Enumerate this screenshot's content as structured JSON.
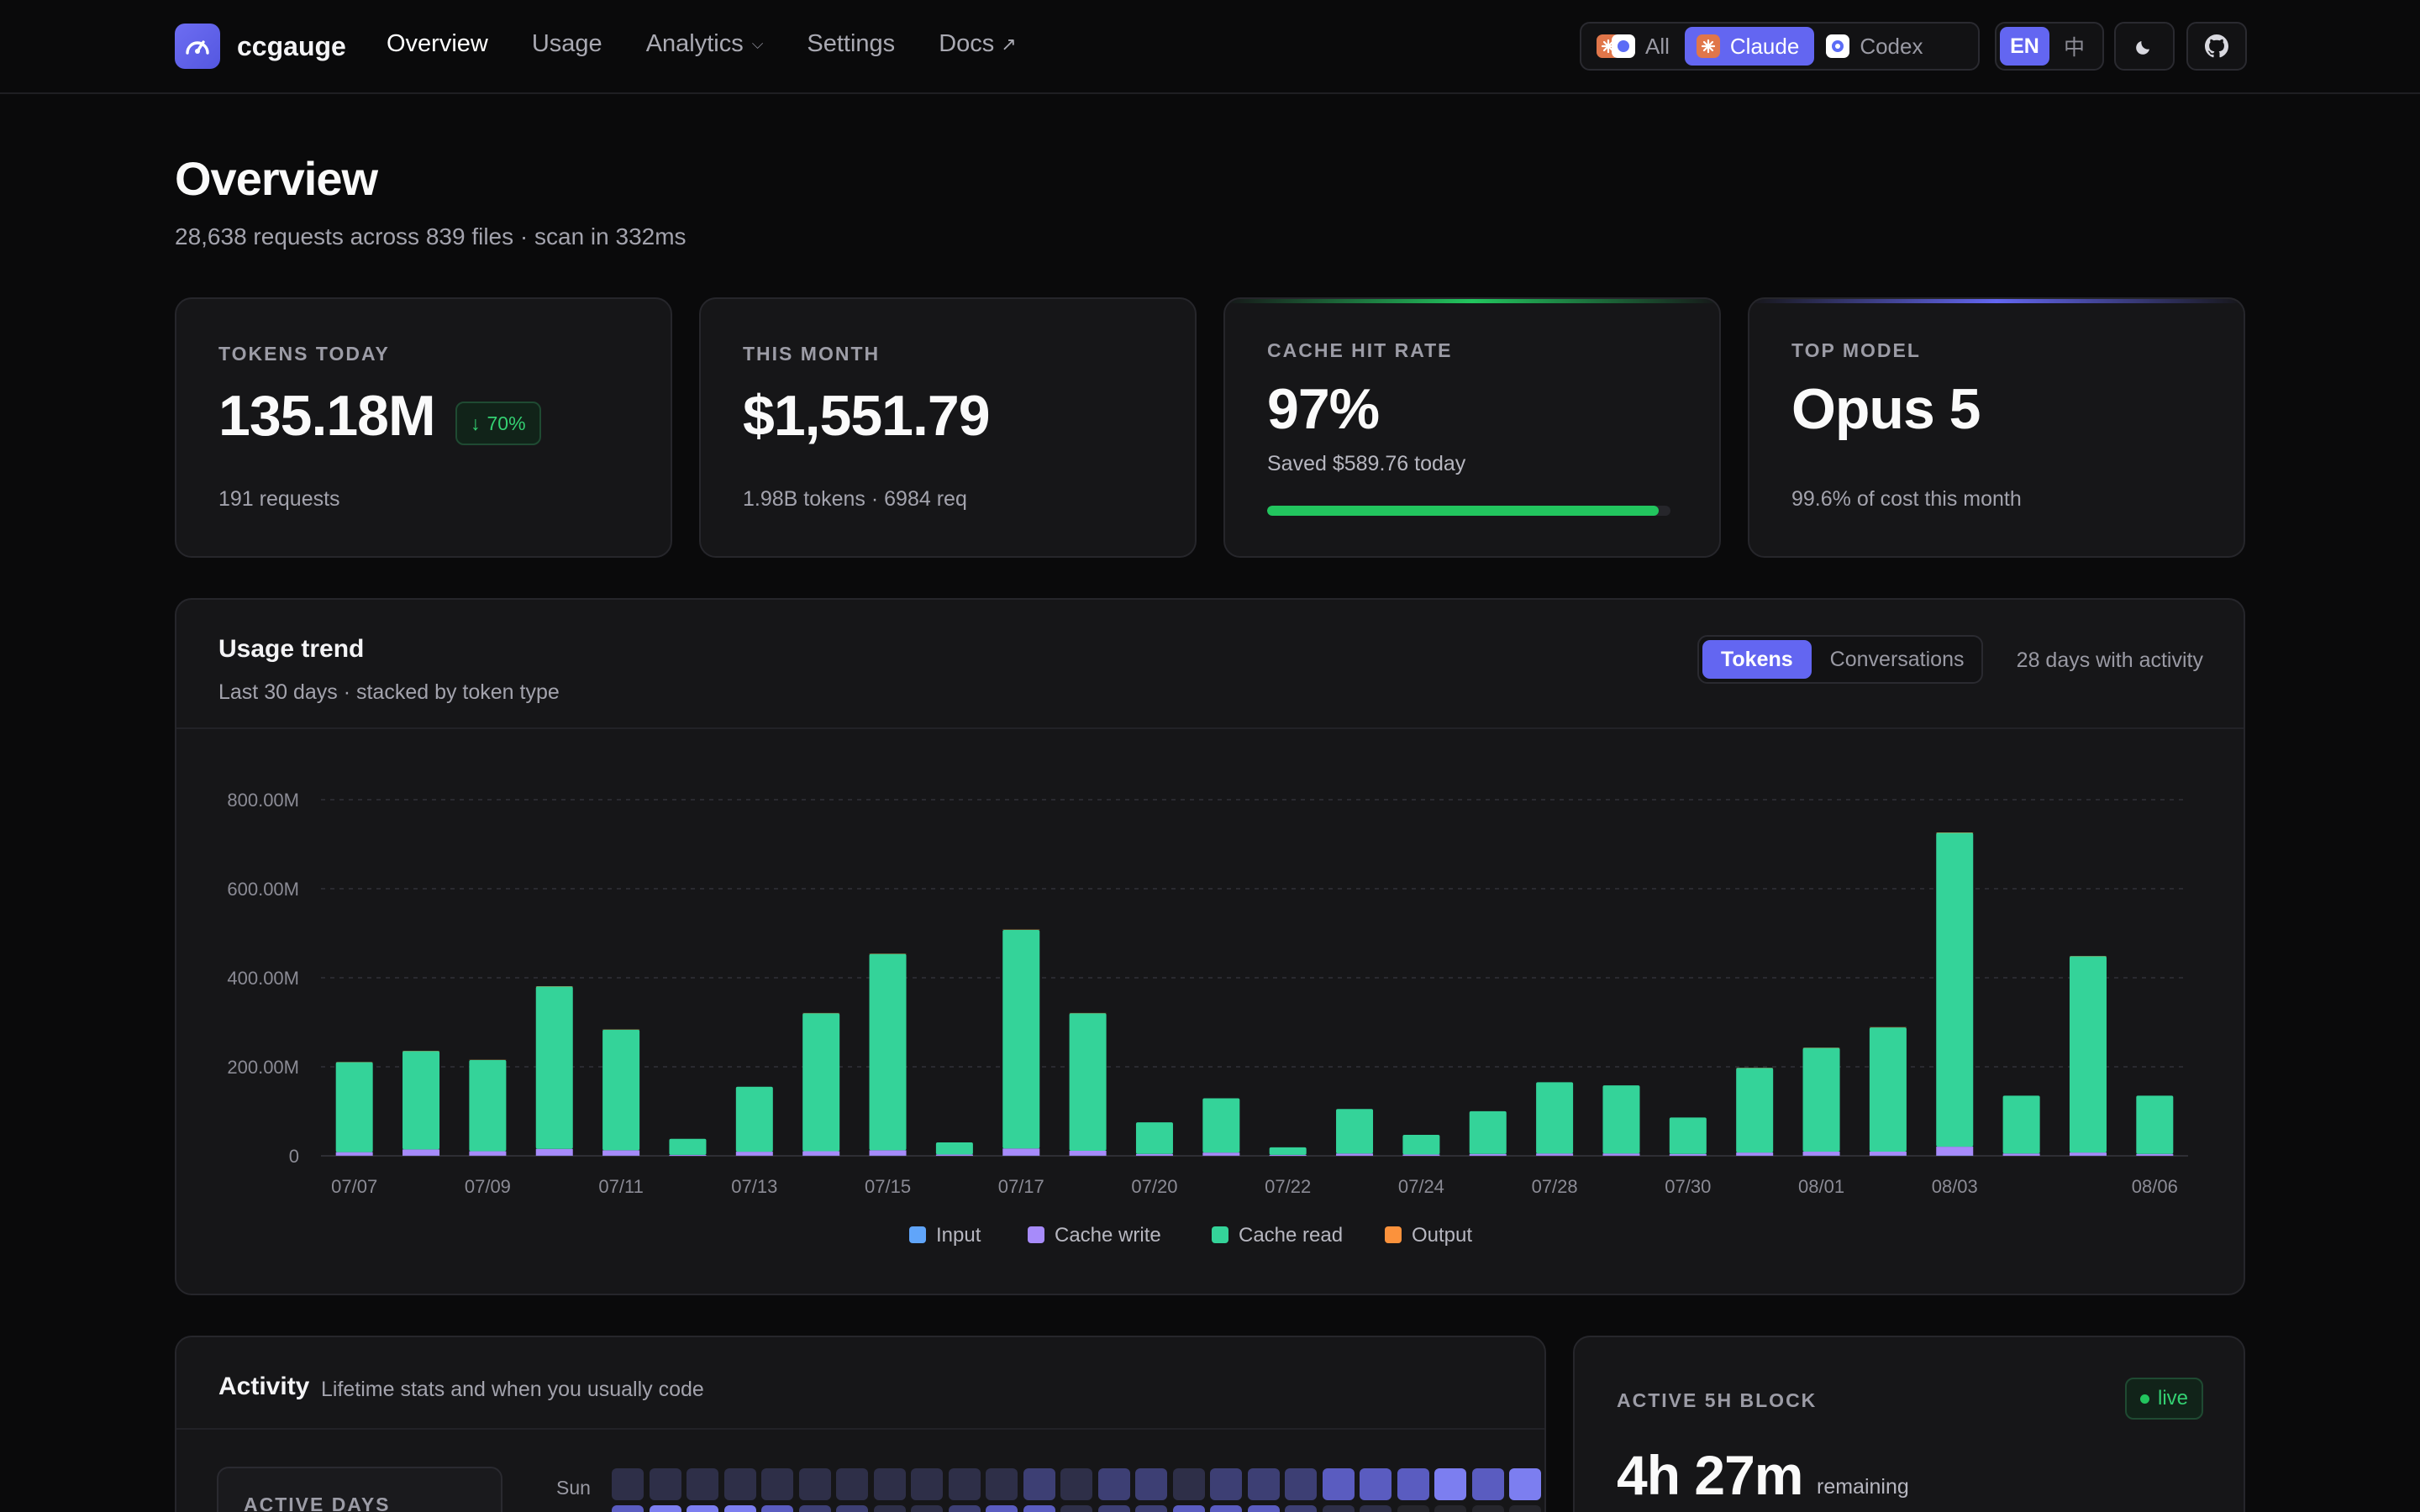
{
  "app": {
    "name": "ccgauge"
  },
  "nav": {
    "links": [
      {
        "label": "Overview"
      },
      {
        "label": "Usage"
      },
      {
        "label": "Analytics"
      },
      {
        "label": "Settings"
      },
      {
        "label": "Docs"
      }
    ],
    "active": "Overview",
    "tool_filter": [
      {
        "label": "All"
      },
      {
        "label": "Claude"
      },
      {
        "label": "Codex"
      }
    ],
    "tool_filter_selected": "Claude",
    "language": [
      {
        "label": "EN"
      },
      {
        "label": "中"
      }
    ],
    "language_selected": "EN",
    "theme_icon": "moon-icon",
    "repo_icon": "github-icon"
  },
  "header": {
    "title": "Overview",
    "subtitle": "28,638 requests across 839 files · scan in 332ms"
  },
  "stats": {
    "tokens_today": {
      "label": "TOKENS TODAY",
      "value": "135.18M",
      "change": "70%",
      "change_direction": "down",
      "foot": "191 requests"
    },
    "this_month": {
      "label": "THIS MONTH",
      "value": "$1,551.79",
      "foot": "1.98B tokens · 6984 req"
    },
    "cache_hit": {
      "label": "CACHE HIT RATE",
      "value": "97%",
      "sub": "Saved $589.76 today",
      "progress": 0.97,
      "accent": "#22c55e"
    },
    "top_model": {
      "label": "TOP MODEL",
      "value": "Opus 5",
      "foot": "99.6% of cost this month",
      "accent": "#6366f1"
    }
  },
  "usage_trend": {
    "title": "Usage trend",
    "subtitle": "Last 30 days · stacked by token type",
    "toggle": [
      {
        "label": "Tokens"
      },
      {
        "label": "Conversations"
      }
    ],
    "toggle_selected": "Tokens",
    "activity_note": "28 days with activity"
  },
  "chart_data": {
    "type": "bar",
    "stacked": true,
    "categories": [
      "07/07",
      "07/08",
      "07/09",
      "07/10",
      "07/11",
      "07/12",
      "07/13",
      "07/14",
      "07/15",
      "07/16",
      "07/17",
      "07/18",
      "07/20",
      "07/21",
      "07/22",
      "07/23",
      "07/24",
      "07/27",
      "07/28",
      "07/29",
      "07/30",
      "07/31",
      "08/01",
      "08/02",
      "08/03",
      "08/04",
      "08/05",
      "08/06"
    ],
    "tick_labels": [
      "07/07",
      "07/09",
      "07/11",
      "07/13",
      "07/15",
      "07/17",
      "07/20",
      "07/22",
      "07/24",
      "07/28",
      "07/30",
      "08/01",
      "08/03",
      "08/06"
    ],
    "tick_label_indices": [
      0,
      2,
      4,
      6,
      8,
      10,
      12,
      14,
      16,
      18,
      20,
      22,
      24,
      27
    ],
    "series": [
      {
        "name": "Input",
        "color": "#60a5fa",
        "values": [
          0.3,
          0.4,
          0.3,
          0.5,
          0.4,
          0.1,
          0.3,
          0.4,
          0.5,
          0.1,
          0.5,
          0.4,
          0.2,
          0.3,
          0.1,
          0.2,
          0.1,
          0.2,
          0.3,
          0.3,
          0.2,
          0.4,
          0.4,
          0.5,
          0.6,
          0.2,
          0.4,
          0.2
        ]
      },
      {
        "name": "Cache write",
        "color": "#a78bfa",
        "values": [
          8,
          14,
          10,
          15,
          12,
          2,
          9,
          10,
          12,
          3,
          16,
          11,
          4,
          7,
          2,
          5,
          3,
          4,
          5,
          5,
          4,
          7,
          9,
          9,
          20,
          5,
          7,
          4
        ]
      },
      {
        "name": "Cache read",
        "color": "#34d399",
        "values": [
          202,
          221,
          205,
          365,
          271,
          36,
          146,
          310,
          441,
          27,
          491,
          309,
          71,
          122,
          17,
          100,
          44,
          96,
          160,
          153,
          82,
          190,
          233,
          279,
          705,
          130,
          441,
          131
        ]
      },
      {
        "name": "Output",
        "color": "#fb923c",
        "values": [
          0.4,
          0.5,
          0.4,
          0.6,
          0.5,
          0.1,
          0.3,
          0.5,
          0.6,
          0.1,
          0.6,
          0.5,
          0.2,
          0.3,
          0.1,
          0.2,
          0.1,
          0.2,
          0.3,
          0.3,
          0.2,
          0.4,
          0.5,
          0.6,
          0.8,
          0.3,
          0.5,
          0.3
        ]
      }
    ],
    "y_unit": "M",
    "ylim": [
      0,
      800
    ],
    "y_ticks": [
      "0",
      "200.00M",
      "400.00M",
      "600.00M",
      "800.00M"
    ],
    "y_tick_values": [
      0,
      200,
      400,
      600,
      800
    ],
    "grid": true,
    "legend_position": "bottom-center"
  },
  "activity": {
    "title": "Activity",
    "subtitle": "Lifetime stats and when you usually code",
    "active_days_label": "ACTIVE DAYS",
    "heatmap": {
      "rows": [
        {
          "day": "Sun",
          "levels": [
            1,
            1,
            1,
            1,
            1,
            1,
            1,
            1,
            1,
            1,
            1,
            2,
            1,
            2,
            2,
            1,
            2,
            2,
            2,
            3,
            3,
            3,
            4,
            3,
            4
          ]
        },
        {
          "day": "",
          "levels": [
            3,
            4,
            4,
            4,
            3,
            2,
            2,
            1,
            1,
            2,
            3,
            3,
            1,
            2,
            2,
            3,
            3,
            3,
            2,
            1,
            1,
            0,
            0,
            0,
            0
          ]
        }
      ]
    }
  },
  "block": {
    "label": "ACTIVE 5H BLOCK",
    "status": "live",
    "value": "4h 27m",
    "unit": "remaining"
  }
}
